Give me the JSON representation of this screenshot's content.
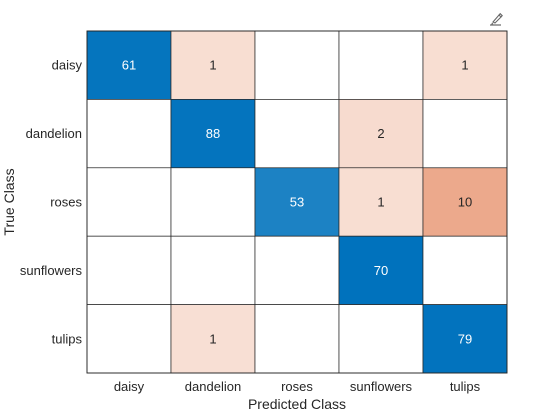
{
  "chart_data": {
    "type": "heatmap",
    "title": "",
    "xlabel": "Predicted Class",
    "ylabel": "True Class",
    "x_categories": [
      "daisy",
      "dandelion",
      "roses",
      "sunflowers",
      "tulips"
    ],
    "y_categories": [
      "daisy",
      "dandelion",
      "roses",
      "sunflowers",
      "tulips"
    ],
    "matrix": [
      [
        61,
        1,
        0,
        0,
        1
      ],
      [
        0,
        88,
        0,
        2,
        0
      ],
      [
        0,
        0,
        53,
        1,
        10
      ],
      [
        0,
        0,
        0,
        70,
        0
      ],
      [
        0,
        1,
        0,
        0,
        79
      ]
    ],
    "zero_cells_shown": false,
    "colors": {
      "diagonal_scale": [
        "#ffffff",
        "#0072bd"
      ],
      "offdiagonal_scale": [
        "#ffffff",
        "#d95319"
      ],
      "grid_line": "#262626",
      "text": "#262626"
    }
  },
  "toolbar": {
    "icon": "brush-edit-icon"
  }
}
